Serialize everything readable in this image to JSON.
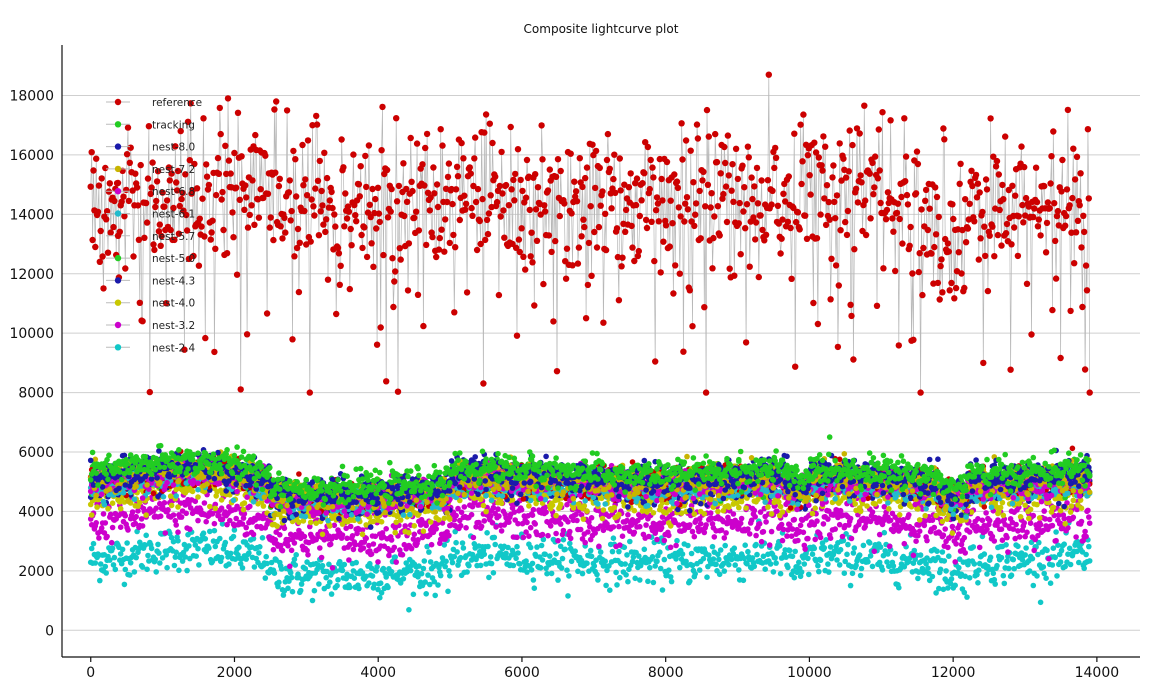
{
  "chart_data": {
    "type": "scatter",
    "title": "Composite lightcurve plot",
    "xlabel": "",
    "ylabel": "",
    "xlim": [
      -400,
      14600
    ],
    "ylim": [
      -900,
      19700
    ],
    "xticks": [
      0,
      2000,
      4000,
      6000,
      8000,
      10000,
      12000,
      14000
    ],
    "yticks": [
      0,
      2000,
      4000,
      6000,
      8000,
      10000,
      12000,
      14000,
      16000,
      18000
    ],
    "grid": "horizontal",
    "legend_position": "upper-left",
    "n_points_per_series": 14000,
    "series": [
      {
        "name": "reference",
        "color": "#cc0000",
        "marker": "circle",
        "connected": true,
        "approx_mean": 14300,
        "approx_spread": 1900,
        "approx_min": 8000,
        "approx_max": 18700
      },
      {
        "name": "tracking",
        "color": "#22cc22",
        "marker": "circle",
        "approx_mean": 5350,
        "approx_spread": 350
      },
      {
        "name": "nest-8.0",
        "color": "#1a1aaa",
        "marker": "circle",
        "approx_mean": 5200,
        "approx_spread": 350
      },
      {
        "name": "nest-7.2",
        "color": "#c8b400",
        "marker": "circle",
        "approx_mean": 5050,
        "approx_spread": 350
      },
      {
        "name": "nest-6.8",
        "color": "#cc00cc",
        "marker": "circle",
        "approx_mean": 4950,
        "approx_spread": 350
      },
      {
        "name": "nest-6.1",
        "color": "#22bbcc",
        "marker": "circle",
        "approx_mean": 4850,
        "approx_spread": 350
      },
      {
        "name": "nest-5.7",
        "color": "#cc0000",
        "marker": "circle",
        "approx_mean": 5000,
        "approx_spread": 350
      },
      {
        "name": "nest-5.0",
        "color": "#22cc22",
        "marker": "circle",
        "approx_mean": 5100,
        "approx_spread": 350
      },
      {
        "name": "nest-4.3",
        "color": "#1a1aaa",
        "marker": "circle",
        "approx_mean": 4900,
        "approx_spread": 380
      },
      {
        "name": "nest-4.0",
        "color": "#c8c800",
        "marker": "circle",
        "approx_mean": 4500,
        "approx_spread": 420
      },
      {
        "name": "nest-3.2",
        "color": "#cc00cc",
        "marker": "circle",
        "approx_mean": 3650,
        "approx_spread": 480
      },
      {
        "name": "nest-2.4",
        "color": "#11c8c8",
        "marker": "circle",
        "approx_mean": 2400,
        "approx_spread": 520
      }
    ]
  }
}
